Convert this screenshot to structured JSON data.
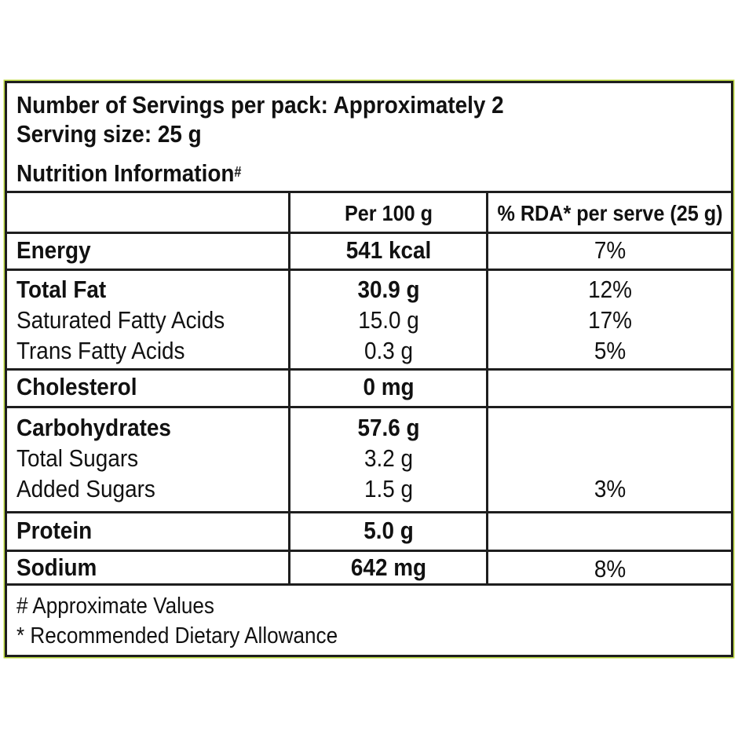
{
  "header": {
    "servings_line": "Number of Servings per pack: Approximately 2",
    "serving_size_line": "Serving size: 25 g",
    "title": "Nutrition Information",
    "title_mark": "#"
  },
  "columns": {
    "per_100g": "Per 100 g",
    "rda": "% RDA* per serve (25 g)"
  },
  "rows": [
    {
      "name": "Energy",
      "value": "541 kcal",
      "rda": "7%"
    },
    {
      "name": "Total Fat",
      "value": "30.9 g",
      "rda": "12%"
    },
    {
      "name": "Saturated Fatty Acids",
      "value": "15.0 g",
      "rda": "17%"
    },
    {
      "name": "Trans Fatty Acids",
      "value": "0.3 g",
      "rda": "5%"
    },
    {
      "name": "Cholesterol",
      "value": "0 mg",
      "rda": ""
    },
    {
      "name": "Carbohydrates",
      "value": "57.6 g",
      "rda": ""
    },
    {
      "name": "Total Sugars",
      "value": "3.2 g",
      "rda": ""
    },
    {
      "name": "Added Sugars",
      "value": "1.5 g",
      "rda": "3%"
    },
    {
      "name": "Protein",
      "value": "5.0 g",
      "rda": ""
    },
    {
      "name": "Sodium",
      "value": "642 mg",
      "rda": "8%"
    }
  ],
  "footer": {
    "note1": "# Approximate Values",
    "note2": "* Recommended Dietary Allowance"
  }
}
